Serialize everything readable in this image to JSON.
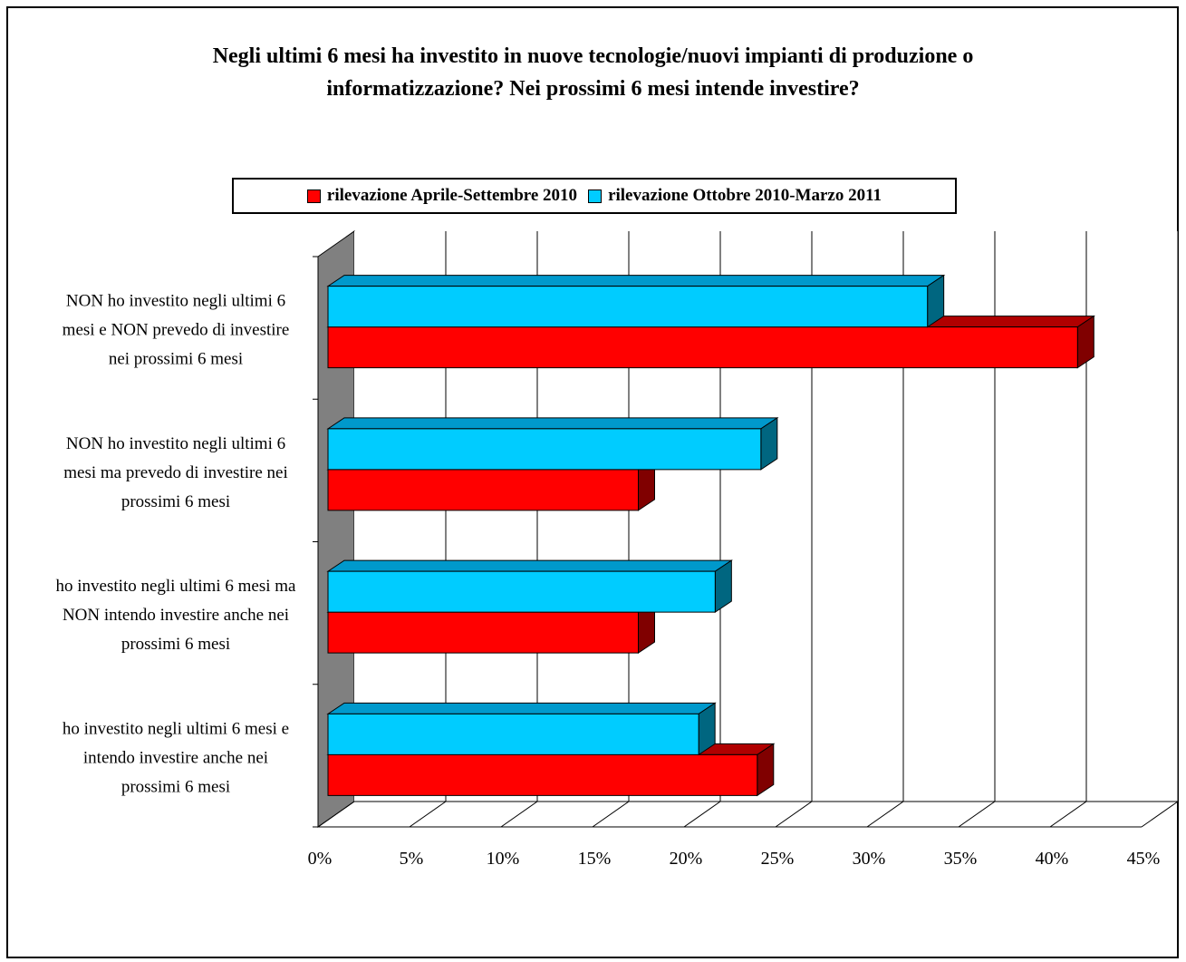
{
  "chart_data": {
    "type": "bar",
    "orientation": "horizontal",
    "style": "3d-clustered",
    "title": "Negli ultimi 6 mesi ha investito in nuove tecnologie/nuovi impianti di produzione o informatizzazione? Nei prossimi 6 mesi intende investire?",
    "title_lines": [
      "Negli ultimi 6 mesi ha investito in nuove tecnologie/nuovi impianti di produzione o",
      "informatizzazione? Nei prossimi 6 mesi intende investire?"
    ],
    "categories": [
      [
        "NON ho investito negli ultimi 6",
        "mesi e NON prevedo di investire",
        "nei prossimi 6 mesi"
      ],
      [
        "NON ho investito negli ultimi 6",
        "mesi ma prevedo di investire nei",
        "prossimi 6 mesi"
      ],
      [
        "ho investito negli ultimi 6 mesi ma",
        "NON intendo investire anche nei",
        "prossimi 6 mesi"
      ],
      [
        "ho investito negli ultimi 6 mesi e",
        "intendo investire anche nei",
        "prossimi 6 mesi"
      ]
    ],
    "series": [
      {
        "name": "rilevazione Aprile-Settembre 2010",
        "color": "#ff0000",
        "side_color": "#800000",
        "top_color": "#b00000",
        "values": [
          41.5,
          17.5,
          17.5,
          24.0
        ]
      },
      {
        "name": "rilevazione Ottobre 2010-Marzo 2011",
        "color": "#00ccff",
        "side_color": "#006680",
        "top_color": "#0099cc",
        "values": [
          33.3,
          24.2,
          21.7,
          20.8
        ]
      }
    ],
    "xlim": [
      0,
      45
    ],
    "xticks": [
      "0%",
      "5%",
      "10%",
      "15%",
      "20%",
      "25%",
      "30%",
      "35%",
      "40%",
      "45%"
    ],
    "grid": true,
    "legend": "top"
  }
}
